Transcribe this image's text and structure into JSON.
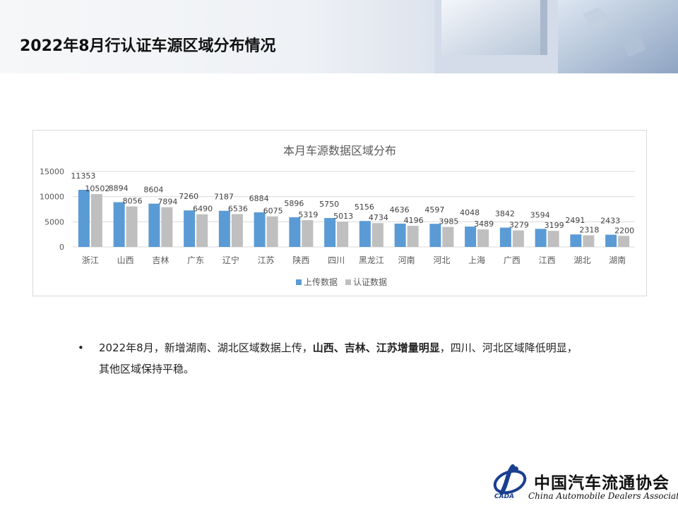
{
  "header": {
    "title": "2022年8月行认证车源区域分布情况"
  },
  "chart_data": {
    "type": "bar",
    "title": "本月车源数据区域分布",
    "categories": [
      "浙江",
      "山西",
      "吉林",
      "广东",
      "辽宁",
      "江苏",
      "陕西",
      "四川",
      "黑龙江",
      "河南",
      "河北",
      "上海",
      "广西",
      "江西",
      "湖北",
      "湖南"
    ],
    "series": [
      {
        "name": "上传数据",
        "color": "#5b9bd5",
        "values": [
          11353,
          8894,
          8604,
          7260,
          7187,
          6884,
          5896,
          5750,
          5156,
          4636,
          4597,
          4048,
          3842,
          3594,
          2491,
          2433
        ]
      },
      {
        "name": "认证数据",
        "color": "#bfbfbf",
        "values": [
          10502,
          8056,
          7894,
          6490,
          6536,
          6075,
          5319,
          5013,
          4734,
          4196,
          3985,
          3489,
          3279,
          3199,
          2318,
          2200
        ]
      }
    ],
    "yticks": [
      0,
      5000,
      10000,
      15000
    ],
    "ylim": [
      0,
      15000
    ],
    "legend_position": "bottom",
    "grid": true
  },
  "summary": {
    "bullet": "•",
    "part1": "2022年8月，新增湖南、湖北区域数据上传，",
    "highlight": "山西、吉林、江苏增量明显",
    "part2": "，四川、河北区域降低明显，其他区域保持平稳。"
  },
  "logo": {
    "cn": "中国汽车流通协会",
    "en": "China Automobile Dealers Association",
    "abbr": "CADA",
    "color": "#1a3f8f"
  }
}
